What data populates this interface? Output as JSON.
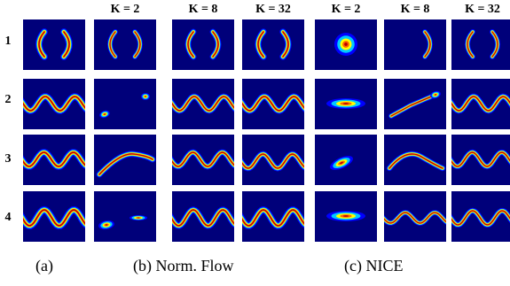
{
  "column_headers": [
    "K = 2",
    "K = 8",
    "K = 32",
    "K = 2",
    "K = 8",
    "K = 32"
  ],
  "row_labels": [
    "1",
    "2",
    "3",
    "4"
  ],
  "captions": {
    "a": "(a)",
    "b": "(b) Norm. Flow",
    "c": "(c) NICE"
  },
  "colormap": [
    "#00007a",
    "#0000ff",
    "#00c8ff",
    "#ffff00",
    "#ff6400",
    "#b40000"
  ]
}
